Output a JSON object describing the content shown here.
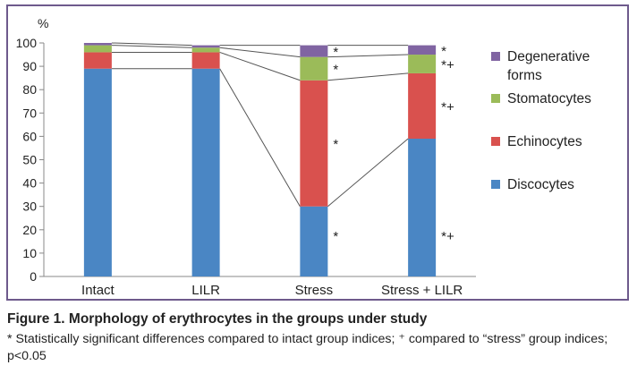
{
  "chart_data": {
    "type": "bar",
    "stacked": true,
    "ylabel": "%",
    "ylim": [
      0,
      100
    ],
    "yticks": [
      0,
      10,
      20,
      30,
      40,
      50,
      60,
      70,
      80,
      90,
      100
    ],
    "categories": [
      "Intact",
      "LILR",
      "Stress",
      "Stress + LILR"
    ],
    "series": [
      {
        "name": "Discocytes",
        "color": "#4a86c4",
        "values": [
          89,
          89,
          30,
          59
        ]
      },
      {
        "name": "Echinocytes",
        "color": "#d9514e",
        "values": [
          7,
          7,
          54,
          28
        ]
      },
      {
        "name": "Stomatocytes",
        "color": "#9bbb59",
        "values": [
          3,
          2,
          10,
          8
        ]
      },
      {
        "name": "Degenerative forms",
        "color": "#8064a2",
        "values": [
          1,
          1,
          5,
          4
        ]
      }
    ],
    "annotations": [
      {
        "category": "Stress",
        "series": "Degenerative forms",
        "text": "*"
      },
      {
        "category": "Stress",
        "series": "Stomatocytes",
        "text": "*"
      },
      {
        "category": "Stress",
        "series": "Echinocytes",
        "text": "*"
      },
      {
        "category": "Stress",
        "series": "Discocytes",
        "text": "*"
      },
      {
        "category": "Stress + LILR",
        "series": "Degenerative forms",
        "text": "*"
      },
      {
        "category": "Stress + LILR",
        "series": "Stomatocytes",
        "text": "*+"
      },
      {
        "category": "Stress + LILR",
        "series": "Echinocytes",
        "text": "*+"
      },
      {
        "category": "Stress + LILR",
        "series": "Discocytes",
        "text": "*+"
      }
    ],
    "legend_position": "right",
    "series_lines": true
  },
  "caption": {
    "title": "Figure 1. Morphology of erythrocytes in the groups under study",
    "note": "* Statistically significant differences compared to intact group indices; ⁺ compared to “stress” group indices; p<0.05"
  }
}
